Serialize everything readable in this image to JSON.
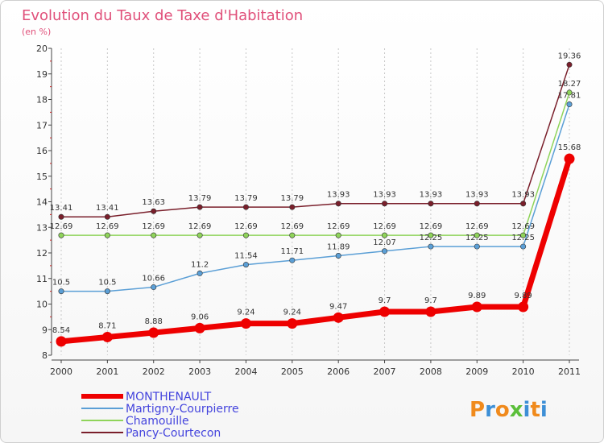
{
  "chart_data": {
    "type": "line",
    "title": "Evolution du Taux de Taxe d'Habitation",
    "ylabel": "(en %)",
    "xlabel": "",
    "ylim": [
      8,
      20
    ],
    "yticks": [
      8,
      9,
      10,
      11,
      12,
      13,
      14,
      15,
      16,
      17,
      18,
      19,
      20
    ],
    "categories": [
      "2000",
      "2001",
      "2002",
      "2003",
      "2004",
      "2005",
      "2006",
      "2007",
      "2008",
      "2009",
      "2010",
      "2011"
    ],
    "series": [
      {
        "name": "Pancy-Courtecon",
        "color": "#7a1f2b",
        "values": [
          13.41,
          13.41,
          13.63,
          13.79,
          13.79,
          13.79,
          13.93,
          13.93,
          13.93,
          13.93,
          13.93,
          19.36
        ],
        "labels": [
          "13.41",
          "13.41",
          "13.63",
          "13.79",
          "13.79",
          "13.79",
          "13.93",
          "13.93",
          "13.93",
          "13.93",
          "13.93",
          "19.36"
        ]
      },
      {
        "name": "Chamouille",
        "color": "#8fd45a",
        "values": [
          12.69,
          12.69,
          12.69,
          12.69,
          12.69,
          12.69,
          12.69,
          12.69,
          12.69,
          12.69,
          12.69,
          18.27
        ],
        "labels": [
          "12.69",
          "12.69",
          "12.69",
          "12.69",
          "12.69",
          "12.69",
          "12.69",
          "12.69",
          "12.69",
          "12.69",
          "12.69",
          "18.27"
        ]
      },
      {
        "name": "Martigny-Courpierre",
        "color": "#5b9fd6",
        "values": [
          10.5,
          10.5,
          10.66,
          11.2,
          11.54,
          11.71,
          11.89,
          12.07,
          12.25,
          12.25,
          12.25,
          17.81
        ],
        "labels": [
          "10.5",
          "10.5",
          "10.66",
          "11.2",
          "11.54",
          "11.71",
          "11.89",
          "12.07",
          "12.25",
          "12.25",
          "12.25",
          "17.81"
        ]
      },
      {
        "name": "MONTHENAULT",
        "color": "#ee0000",
        "values": [
          8.54,
          8.71,
          8.88,
          9.06,
          9.24,
          9.24,
          9.47,
          9.7,
          9.7,
          9.89,
          9.89,
          15.68
        ],
        "labels": [
          "8.54",
          "8.71",
          "8.88",
          "9.06",
          "9.24",
          "9.24",
          "9.47",
          "9.7",
          "9.7",
          "9.89",
          "9.89",
          "15.68"
        ]
      }
    ],
    "legend": [
      {
        "name": "MONTHENAULT",
        "color": "#ee0000",
        "text_color": "#4444dd"
      },
      {
        "name": "Martigny-Courpierre",
        "color": "#5b9fd6",
        "text_color": "#4444dd"
      },
      {
        "name": "Chamouille",
        "color": "#8fd45a",
        "text_color": "#4444dd"
      },
      {
        "name": "Pancy-Courtecon",
        "color": "#7a1f2b",
        "text_color": "#4444dd"
      }
    ],
    "legend_position": "bottom-left"
  },
  "logo": {
    "text": "Proxiti",
    "letters": [
      {
        "ch": "P",
        "color": "#f08a1c"
      },
      {
        "ch": "r",
        "color": "#3d8fd6"
      },
      {
        "ch": "o",
        "color": "#f08a1c"
      },
      {
        "ch": "x",
        "color": "#5bbf3a"
      },
      {
        "ch": "i",
        "color": "#3d8fd6"
      },
      {
        "ch": "t",
        "color": "#f08a1c"
      },
      {
        "ch": "i",
        "color": "#3d8fd6"
      }
    ]
  }
}
